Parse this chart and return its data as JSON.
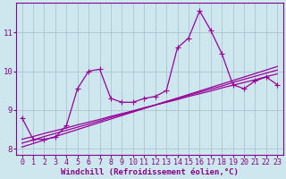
{
  "x": [
    0,
    1,
    2,
    3,
    4,
    5,
    6,
    7,
    8,
    9,
    10,
    11,
    12,
    13,
    14,
    15,
    16,
    17,
    18,
    19,
    20,
    21,
    22,
    23
  ],
  "y_main": [
    8.8,
    8.25,
    8.25,
    8.3,
    8.6,
    9.55,
    10.0,
    10.05,
    9.3,
    9.2,
    9.2,
    9.3,
    9.35,
    9.5,
    10.6,
    10.85,
    11.55,
    11.05,
    10.45,
    9.65,
    9.55,
    9.75,
    9.85,
    9.65
  ],
  "y_line1": [
    8.25,
    8.32,
    8.4,
    8.47,
    8.54,
    8.62,
    8.69,
    8.76,
    8.84,
    8.91,
    8.98,
    9.06,
    9.13,
    9.2,
    9.27,
    9.35,
    9.42,
    9.49,
    9.57,
    9.64,
    9.71,
    9.78,
    9.86,
    9.93
  ],
  "y_line2": [
    8.15,
    8.23,
    8.32,
    8.4,
    8.48,
    8.56,
    8.64,
    8.72,
    8.81,
    8.89,
    8.97,
    9.05,
    9.13,
    9.22,
    9.3,
    9.38,
    9.46,
    9.54,
    9.62,
    9.71,
    9.79,
    9.87,
    9.95,
    10.03
  ],
  "y_line3": [
    8.05,
    8.14,
    8.23,
    8.32,
    8.41,
    8.5,
    8.59,
    8.68,
    8.77,
    8.86,
    8.95,
    9.04,
    9.13,
    9.22,
    9.31,
    9.4,
    9.49,
    9.58,
    9.67,
    9.76,
    9.85,
    9.94,
    10.03,
    10.12
  ],
  "line_color": "#990099",
  "bg_color": "#cce8ee",
  "grid_color": "#aabbcc",
  "xlabel": "Windchill (Refroidissement éolien,°C)",
  "ylabel": "",
  "ylim_min": 7.85,
  "ylim_max": 11.75,
  "xlim_min": -0.5,
  "xlim_max": 23.5,
  "yticks": [
    8,
    9,
    10,
    11
  ],
  "xticks": [
    0,
    1,
    2,
    3,
    4,
    5,
    6,
    7,
    8,
    9,
    10,
    11,
    12,
    13,
    14,
    15,
    16,
    17,
    18,
    19,
    20,
    21,
    22,
    23
  ],
  "markersize": 3.0,
  "linewidth": 0.9,
  "xlabel_fontsize": 6.5,
  "tick_fontsize": 6.0,
  "tick_color": "#880088"
}
